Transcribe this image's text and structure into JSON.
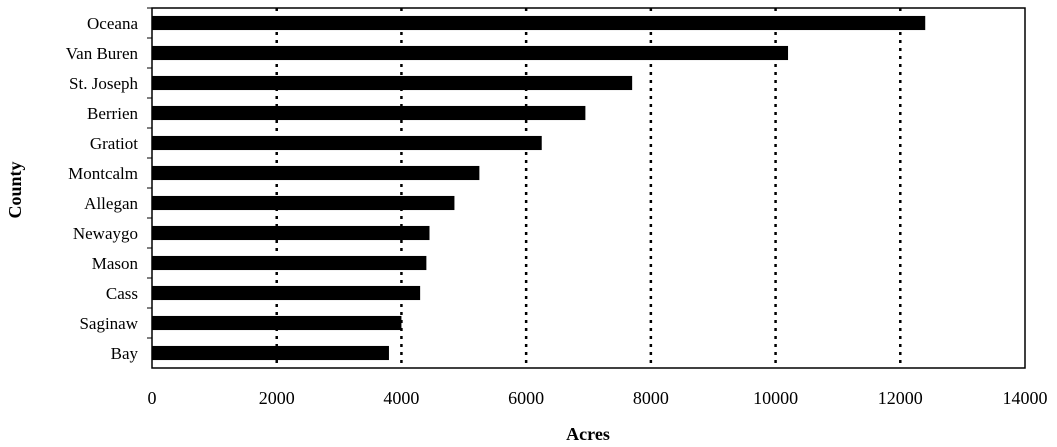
{
  "chart_data": {
    "type": "bar",
    "orientation": "horizontal",
    "title": "",
    "xlabel": "Acres",
    "ylabel": "County",
    "xlim": [
      0,
      14000
    ],
    "xticks": [
      "0",
      "2000",
      "4000",
      "6000",
      "8000",
      "10000",
      "12000",
      "14000"
    ],
    "grid": "vertical dotted",
    "categories": [
      "Oceana",
      "Van Buren",
      "St. Joseph",
      "Berrien",
      "Gratiot",
      "Montcalm",
      "Allegan",
      "Newaygo",
      "Mason",
      "Cass",
      "Saginaw",
      "Bay"
    ],
    "values": [
      12400,
      10200,
      7700,
      6950,
      6250,
      5250,
      4850,
      4450,
      4400,
      4300,
      4000,
      3800
    ],
    "bar_color": "#000000"
  }
}
